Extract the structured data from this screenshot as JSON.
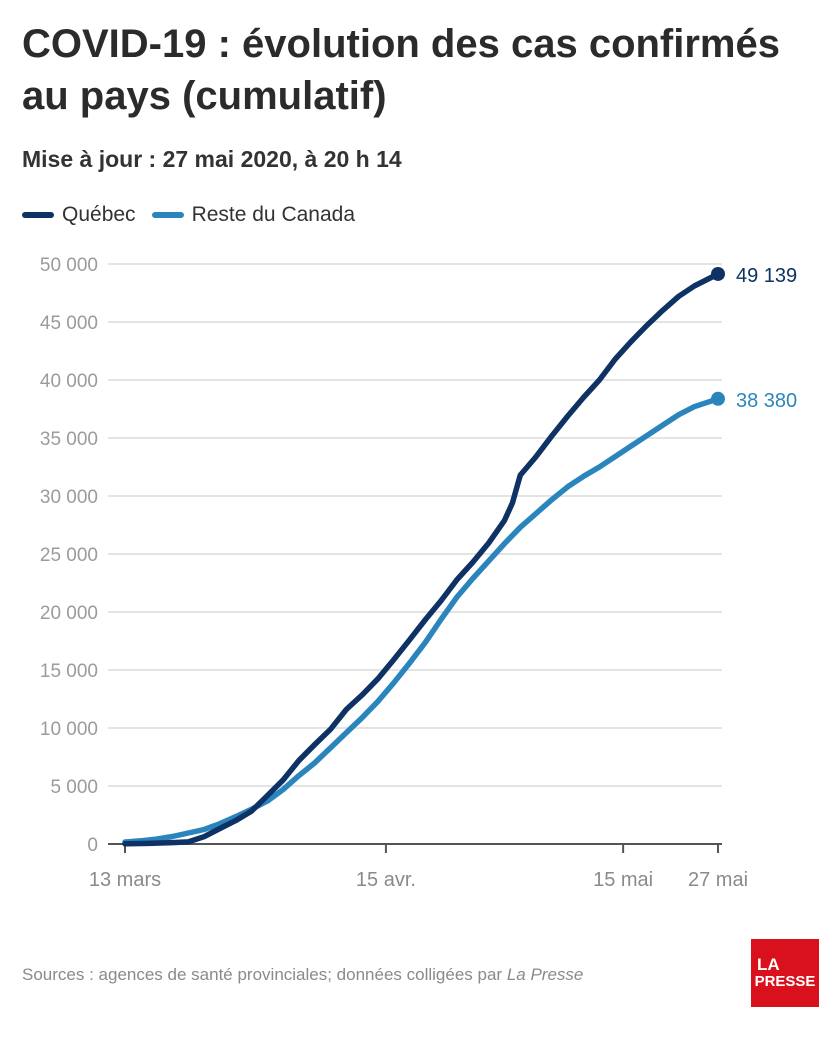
{
  "header": {
    "title": "COVID-19 : évolution des cas confirmés au pays (cumulatif)",
    "subtitle": "Mise à jour : 27 mai 2020, à 20 h 14"
  },
  "footer": {
    "source_prefix": "Sources : agences de santé provinciales; données colligées par ",
    "source_italic": "La Presse",
    "logo_line1": "LA",
    "logo_line2": "PRESSE"
  },
  "colors": {
    "quebec": "#0d3263",
    "rest": "#2b85bd",
    "logo": "#d9111d"
  },
  "chart_data": {
    "type": "line",
    "title": "COVID-19 : évolution des cas confirmés au pays (cumulatif)",
    "xlabel": "",
    "ylabel": "",
    "ylim": [
      0,
      50000
    ],
    "y_ticks": [
      0,
      5000,
      10000,
      15000,
      20000,
      25000,
      30000,
      35000,
      40000,
      45000,
      50000
    ],
    "y_tick_labels": [
      "0",
      "5 000",
      "10 000",
      "15 000",
      "20 000",
      "25 000",
      "30 000",
      "35 000",
      "40 000",
      "45 000",
      "50 000"
    ],
    "x_ticks": [
      {
        "date": "2020-03-13",
        "label": "13 mars"
      },
      {
        "date": "2020-04-15",
        "label": "15 avr."
      },
      {
        "date": "2020-05-15",
        "label": "15 mai"
      },
      {
        "date": "2020-05-27",
        "label": "27 mai"
      }
    ],
    "grid": true,
    "legend": "top-left",
    "series": [
      {
        "name": "Québec",
        "color": "#0d3263",
        "end_label": "49 139",
        "points": [
          [
            "2020-03-13",
            17
          ],
          [
            "2020-03-16",
            50
          ],
          [
            "2020-03-19",
            121
          ],
          [
            "2020-03-21",
            181
          ],
          [
            "2020-03-23",
            628
          ],
          [
            "2020-03-25",
            1339
          ],
          [
            "2020-03-27",
            2021
          ],
          [
            "2020-03-29",
            2840
          ],
          [
            "2020-03-31",
            4162
          ],
          [
            "2020-04-02",
            5518
          ],
          [
            "2020-04-04",
            7200
          ],
          [
            "2020-04-06",
            8580
          ],
          [
            "2020-04-08",
            9900
          ],
          [
            "2020-04-10",
            11600
          ],
          [
            "2020-04-12",
            12850
          ],
          [
            "2020-04-14",
            14250
          ],
          [
            "2020-04-16",
            15900
          ],
          [
            "2020-04-18",
            17600
          ],
          [
            "2020-04-20",
            19350
          ],
          [
            "2020-04-22",
            21000
          ],
          [
            "2020-04-24",
            22800
          ],
          [
            "2020-04-26",
            24300
          ],
          [
            "2020-04-28",
            25950
          ],
          [
            "2020-04-30",
            27900
          ],
          [
            "2020-05-01",
            29400
          ],
          [
            "2020-05-02",
            31800
          ],
          [
            "2020-05-04",
            33400
          ],
          [
            "2020-05-06",
            35200
          ],
          [
            "2020-05-08",
            36900
          ],
          [
            "2020-05-10",
            38500
          ],
          [
            "2020-05-12",
            40000
          ],
          [
            "2020-05-14",
            41800
          ],
          [
            "2020-05-16",
            43300
          ],
          [
            "2020-05-18",
            44700
          ],
          [
            "2020-05-20",
            46000
          ],
          [
            "2020-05-22",
            47200
          ],
          [
            "2020-05-24",
            48100
          ],
          [
            "2020-05-27",
            49139
          ]
        ]
      },
      {
        "name": "Reste du Canada",
        "color": "#2b85bd",
        "end_label": "38 380",
        "points": [
          [
            "2020-03-13",
            170
          ],
          [
            "2020-03-15",
            280
          ],
          [
            "2020-03-17",
            420
          ],
          [
            "2020-03-19",
            650
          ],
          [
            "2020-03-21",
            950
          ],
          [
            "2020-03-23",
            1250
          ],
          [
            "2020-03-25",
            1750
          ],
          [
            "2020-03-27",
            2350
          ],
          [
            "2020-03-29",
            3000
          ],
          [
            "2020-03-31",
            3700
          ],
          [
            "2020-04-02",
            4700
          ],
          [
            "2020-04-04",
            5900
          ],
          [
            "2020-04-06",
            7000
          ],
          [
            "2020-04-08",
            8300
          ],
          [
            "2020-04-10",
            9600
          ],
          [
            "2020-04-12",
            10900
          ],
          [
            "2020-04-14",
            12300
          ],
          [
            "2020-04-16",
            13900
          ],
          [
            "2020-04-18",
            15600
          ],
          [
            "2020-04-20",
            17400
          ],
          [
            "2020-04-22",
            19400
          ],
          [
            "2020-04-24",
            21300
          ],
          [
            "2020-04-26",
            22900
          ],
          [
            "2020-04-28",
            24400
          ],
          [
            "2020-04-30",
            25900
          ],
          [
            "2020-05-02",
            27300
          ],
          [
            "2020-05-04",
            28500
          ],
          [
            "2020-05-06",
            29700
          ],
          [
            "2020-05-08",
            30800
          ],
          [
            "2020-05-10",
            31700
          ],
          [
            "2020-05-12",
            32500
          ],
          [
            "2020-05-14",
            33400
          ],
          [
            "2020-05-16",
            34300
          ],
          [
            "2020-05-18",
            35200
          ],
          [
            "2020-05-20",
            36100
          ],
          [
            "2020-05-22",
            37000
          ],
          [
            "2020-05-24",
            37700
          ],
          [
            "2020-05-27",
            38380
          ]
        ]
      }
    ]
  }
}
